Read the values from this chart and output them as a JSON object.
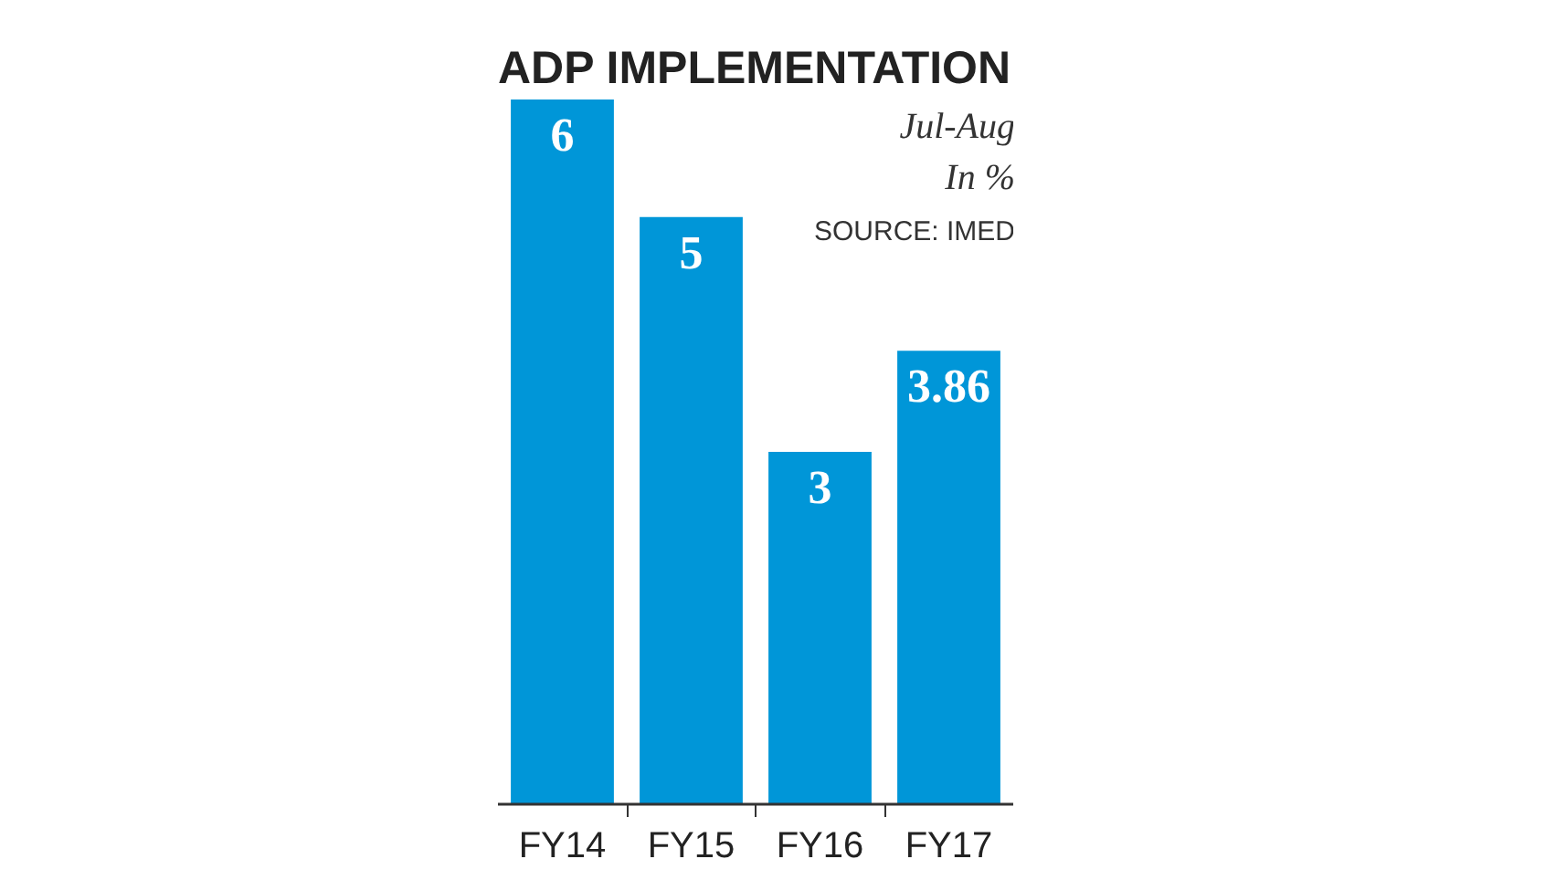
{
  "chart_data": {
    "type": "bar",
    "title": "ADP IMPLEMENTATION",
    "subtitle": "Jul-Aug\nIn %",
    "annotations": [
      "SOURCE: IMED"
    ],
    "categories": [
      "FY14",
      "FY15",
      "FY16",
      "FY17"
    ],
    "values": [
      6,
      5,
      3,
      3.86
    ],
    "color": "#0096d8",
    "data_labels": true,
    "grid": false
  }
}
